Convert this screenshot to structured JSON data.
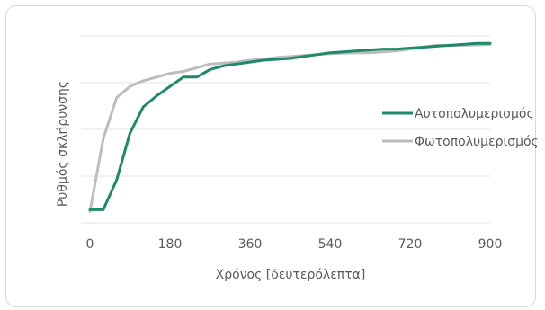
{
  "chart_data": {
    "type": "line",
    "title": "",
    "xlabel": "Χρόνος [δευτερόλεπτα]",
    "ylabel": "Ρυθμός σκλήρυνσης",
    "xlim": [
      0,
      900
    ],
    "ylim": [
      0,
      100
    ],
    "xticks": [
      0,
      180,
      360,
      540,
      720,
      900
    ],
    "grid": true,
    "legend_position": "right",
    "series": [
      {
        "name": "Αυτοπολυμερισμός",
        "color": "#1e8a6a",
        "x": [
          0,
          30,
          60,
          90,
          120,
          150,
          180,
          210,
          240,
          270,
          300,
          330,
          360,
          390,
          420,
          450,
          480,
          510,
          540,
          570,
          600,
          630,
          660,
          690,
          720,
          750,
          780,
          810,
          840,
          870,
          900
        ],
        "y": [
          7,
          7,
          23,
          48,
          62,
          68,
          73,
          78,
          78,
          82,
          84,
          85,
          86,
          87,
          87.5,
          88,
          89,
          90,
          91,
          91.5,
          92,
          92.5,
          93,
          93,
          93.5,
          94,
          94.5,
          95,
          95.5,
          96,
          96
        ]
      },
      {
        "name": "Φωτοπολυμερισμός",
        "color": "#bdbdbd",
        "x": [
          0,
          30,
          60,
          90,
          120,
          150,
          180,
          210,
          240,
          270,
          300,
          330,
          360,
          390,
          420,
          450,
          480,
          510,
          540,
          570,
          600,
          630,
          660,
          690,
          720,
          750,
          780,
          810,
          840,
          870,
          900
        ],
        "y": [
          6,
          45,
          67,
          73,
          76,
          78,
          80,
          81,
          83,
          85,
          85.5,
          86,
          87,
          87.5,
          88.5,
          89,
          89.5,
          90,
          90.5,
          90.8,
          91,
          91,
          91.5,
          92,
          93,
          94,
          95,
          95,
          95,
          95.2,
          95.5
        ]
      }
    ]
  }
}
